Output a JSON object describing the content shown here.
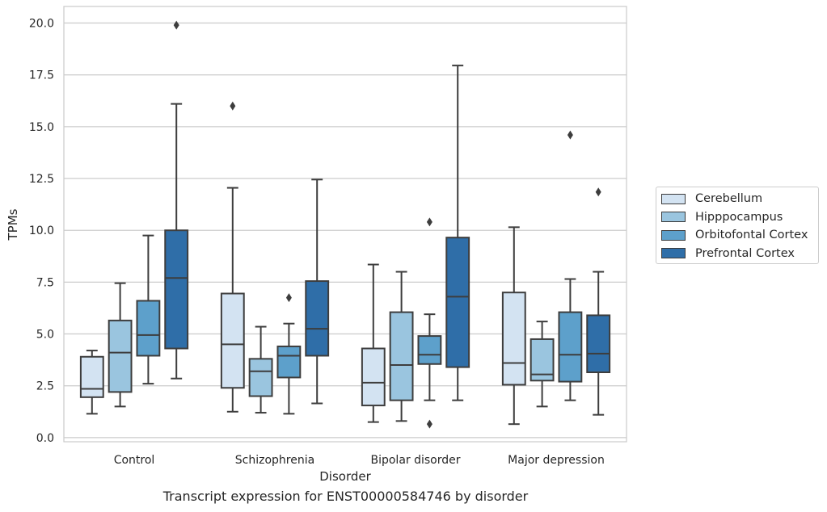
{
  "chart_data": {
    "type": "box",
    "title": "",
    "caption": "Transcript expression for ENST00000584746 by disorder",
    "xlabel": "Disorder",
    "ylabel": "TPMs",
    "ylim": [
      -0.2,
      20.8
    ],
    "yticks": [
      "0.0",
      "2.5",
      "5.0",
      "7.5",
      "10.0",
      "12.5",
      "15.0",
      "17.5",
      "20.0"
    ],
    "grid": true,
    "legend_position": "right",
    "categories": [
      "Control",
      "Schizophrenia",
      "Bipolar disorder",
      "Major depression"
    ],
    "series": [
      {
        "name": "Cerebellum",
        "color": "#d3e3f2",
        "boxes": [
          {
            "whislo": 1.15,
            "q1": 1.95,
            "med": 2.35,
            "q3": 3.9,
            "whishi": 4.2,
            "fliers": []
          },
          {
            "whislo": 1.25,
            "q1": 2.4,
            "med": 4.5,
            "q3": 6.95,
            "whishi": 12.05,
            "fliers": [
              16.0
            ]
          },
          {
            "whislo": 0.75,
            "q1": 1.55,
            "med": 2.65,
            "q3": 4.3,
            "whishi": 8.35,
            "fliers": []
          },
          {
            "whislo": 0.65,
            "q1": 2.55,
            "med": 3.6,
            "q3": 7.0,
            "whishi": 10.15,
            "fliers": []
          }
        ]
      },
      {
        "name": "Hipppocampus",
        "color": "#9ac5df",
        "boxes": [
          {
            "whislo": 1.5,
            "q1": 2.2,
            "med": 4.1,
            "q3": 5.65,
            "whishi": 7.45,
            "fliers": []
          },
          {
            "whislo": 1.2,
            "q1": 2.0,
            "med": 3.2,
            "q3": 3.8,
            "whishi": 5.35,
            "fliers": []
          },
          {
            "whislo": 0.8,
            "q1": 1.8,
            "med": 3.5,
            "q3": 6.05,
            "whishi": 8.0,
            "fliers": []
          },
          {
            "whislo": 1.5,
            "q1": 2.75,
            "med": 3.05,
            "q3": 4.75,
            "whishi": 5.6,
            "fliers": []
          }
        ]
      },
      {
        "name": "Orbitofontal Cortex",
        "color": "#5da0cb",
        "boxes": [
          {
            "whislo": 2.6,
            "q1": 3.95,
            "med": 4.95,
            "q3": 6.6,
            "whishi": 9.75,
            "fliers": []
          },
          {
            "whislo": 1.15,
            "q1": 2.9,
            "med": 3.95,
            "q3": 4.4,
            "whishi": 5.5,
            "fliers": [
              6.75
            ]
          },
          {
            "whislo": 1.8,
            "q1": 3.55,
            "med": 4.0,
            "q3": 4.9,
            "whishi": 5.95,
            "fliers": [
              10.4,
              0.65
            ]
          },
          {
            "whislo": 1.8,
            "q1": 2.7,
            "med": 4.0,
            "q3": 6.05,
            "whishi": 7.65,
            "fliers": [
              14.6
            ]
          }
        ]
      },
      {
        "name": "Prefrontal Cortex",
        "color": "#2f6ea8",
        "boxes": [
          {
            "whislo": 2.85,
            "q1": 4.3,
            "med": 7.7,
            "q3": 10.0,
            "whishi": 16.1,
            "fliers": [
              19.9
            ]
          },
          {
            "whislo": 1.65,
            "q1": 3.95,
            "med": 5.25,
            "q3": 7.55,
            "whishi": 12.45,
            "fliers": []
          },
          {
            "whislo": 1.8,
            "q1": 3.4,
            "med": 6.8,
            "q3": 9.65,
            "whishi": 17.95,
            "fliers": []
          },
          {
            "whislo": 1.1,
            "q1": 3.15,
            "med": 4.05,
            "q3": 5.9,
            "whishi": 8.0,
            "fliers": [
              11.85
            ]
          }
        ]
      }
    ]
  }
}
